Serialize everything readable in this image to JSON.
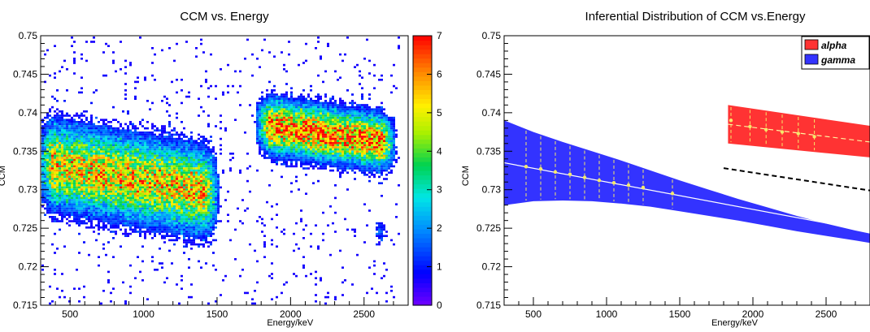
{
  "chart_data": [
    {
      "type": "heatmap",
      "title": "CCM vs. Energy",
      "xlabel": "Energy/keV",
      "ylabel": "CCM",
      "xlim": [
        300,
        2800
      ],
      "ylim": [
        0.715,
        0.75
      ],
      "xticks": [
        "500",
        "1000",
        "1500",
        "2000",
        "2500"
      ],
      "yticks": [
        "0.715",
        "0.72",
        "0.725",
        "0.73",
        "0.735",
        "0.74",
        "0.745",
        "0.75"
      ],
      "colorbar": {
        "min": 0,
        "max": 7,
        "ticks": [
          "0",
          "1",
          "2",
          "3",
          "4",
          "5",
          "6",
          "7"
        ]
      },
      "clusters": [
        {
          "x_range": [
            300,
            1500
          ],
          "y_center_at_300": 0.7335,
          "y_center_at_1500": 0.7295,
          "y_sigma": 0.0035,
          "peak_count": 6
        },
        {
          "x_range": [
            1780,
            2700
          ],
          "y_center_at_1780": 0.7385,
          "y_center_at_2700": 0.736,
          "y_sigma": 0.0022,
          "peak_count": 7
        },
        {
          "x_range": [
            2580,
            2640
          ],
          "y_center": 0.7245,
          "y_sigma": 0.0012,
          "peak_count": 3
        }
      ]
    },
    {
      "type": "line",
      "title": "Inferential Distribution of CCM vs.Energy",
      "xlabel": "Energy/keV",
      "ylabel": "CCM",
      "xlim": [
        300,
        2800
      ],
      "ylim": [
        0.715,
        0.75
      ],
      "xticks": [
        "500",
        "1000",
        "1500",
        "2000",
        "2500"
      ],
      "yticks": [
        "0.715",
        "0.72",
        "0.725",
        "0.73",
        "0.735",
        "0.74",
        "0.745",
        "0.75"
      ],
      "legend_position": "top-right",
      "series": [
        {
          "name": "alpha",
          "color": "#ff3333",
          "band": {
            "x": [
              1830,
              2800
            ],
            "upper": [
              0.741,
              0.7383
            ],
            "lower": [
              0.736,
              0.7342
            ]
          },
          "center": {
            "x": [
              1830,
              2800
            ],
            "y": [
              0.7385,
              0.7362
            ]
          },
          "points": {
            "x": [
              1850,
              1980,
              2090,
              2200,
              2310,
              2420
            ],
            "y": [
              0.739,
              0.7382,
              0.7378,
              0.7375,
              0.7373,
              0.7369
            ]
          }
        },
        {
          "name": "gamma",
          "color": "#3333ff",
          "band": {
            "x": [
              300,
              500,
              700,
              900,
              1100,
              1300,
              1500,
              1700,
              1900,
              2100,
              2300,
              2500,
              2700,
              2800
            ],
            "upper": [
              0.739,
              0.7375,
              0.7362,
              0.735,
              0.7338,
              0.7325,
              0.7312,
              0.73,
              0.7288,
              0.7277,
              0.7266,
              0.7256,
              0.7247,
              0.7243
            ],
            "lower": [
              0.728,
              0.7285,
              0.7286,
              0.7285,
              0.7282,
              0.7278,
              0.7272,
              0.7266,
              0.726,
              0.7253,
              0.7246,
              0.724,
              0.7234,
              0.7231
            ]
          },
          "center": {
            "x": [
              300,
              2800
            ],
            "y": [
              0.7335,
              0.7246
            ]
          },
          "points": {
            "x": [
              450,
              550,
              650,
              750,
              850,
              950,
              1050,
              1150,
              1250,
              1450
            ],
            "y": [
              0.733,
              0.7327,
              0.7323,
              0.732,
              0.7316,
              0.7312,
              0.7309,
              0.7306,
              0.7303,
              0.7295
            ]
          }
        }
      ],
      "dashed_line": {
        "x": [
          1800,
          2800
        ],
        "y": [
          0.7328,
          0.7299
        ]
      }
    }
  ]
}
